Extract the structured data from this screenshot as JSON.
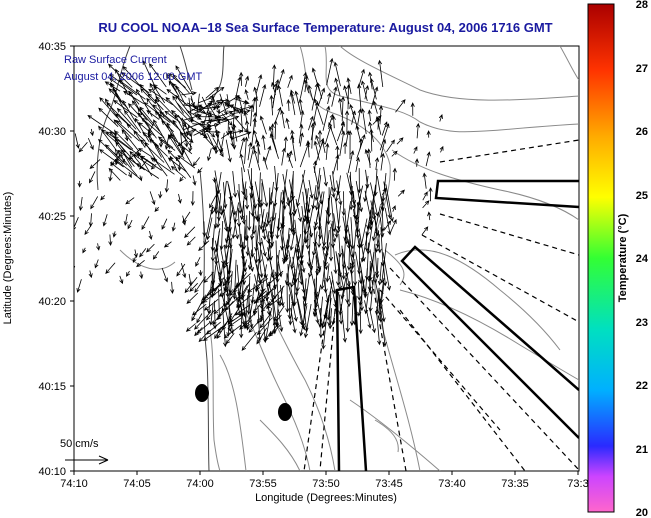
{
  "title": "RU COOL  NOAA–18  Sea Surface Temperature:  August 04, 2006 1716 GMT",
  "legend": {
    "line1": "Raw Surface Current",
    "line2": "August 04, 2006 12:00 GMT"
  },
  "scale_label": "50 cm/s",
  "axes": {
    "xlabel": "Longitude (Degrees:Minutes)",
    "ylabel": "Latitude (Degrees:Minutes)",
    "xticks": [
      "74:10",
      "74:05",
      "74:00",
      "73:55",
      "73:50",
      "73:45",
      "73:40",
      "73:35",
      "73:3"
    ],
    "yticks": [
      "40:35",
      "40:30",
      "40:25",
      "40:20",
      "40:15",
      "40:10"
    ]
  },
  "colorbar": {
    "label": "Temperature (°C)",
    "min": 20,
    "max": 28,
    "ticks": [
      "28",
      "27",
      "26",
      "25",
      "24",
      "23",
      "22",
      "21",
      "20"
    ]
  },
  "map": {
    "lon_range_min": [
      -74.1667,
      -73.5
    ],
    "lat_range_min": [
      40.1667,
      40.5833
    ],
    "markers": [
      "buoy-marker",
      "buoy-marker"
    ],
    "overlays": [
      "current-vectors",
      "bathymetry-contours",
      "coastline",
      "transect-boxes"
    ]
  }
}
